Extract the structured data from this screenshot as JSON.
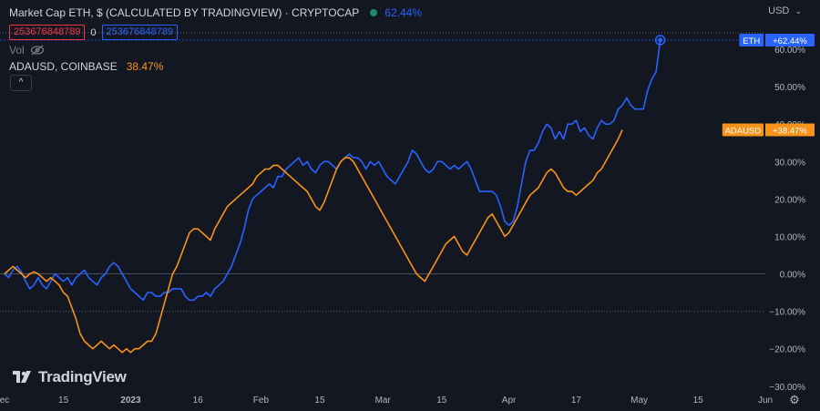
{
  "legend": {
    "eth_title": "Market Cap ETH, $ (CALCULATED BY TRADINGVIEW) · CRYPTOCAP",
    "eth_change": "62.44%",
    "value_red": "253676848789",
    "value_sep": "0",
    "value_blue": "253676848789",
    "vol_label": "Vol",
    "ada_title": "ADAUSD, COINBASE",
    "ada_change": "38.47%",
    "collapse": "^"
  },
  "currency": "USD",
  "logo_text": "TradingView",
  "colors": {
    "eth": "#2962ff",
    "ada": "#f7931a",
    "background": "#131722",
    "grid": "#2a2e39"
  },
  "badges": [
    {
      "symbol": "ETH",
      "value": "+62.44%",
      "color": "#2962ff"
    },
    {
      "symbol": "ADAUSD",
      "value": "+38.47%",
      "color": "#f7931a"
    }
  ],
  "chart_data": {
    "type": "line",
    "ylim": [
      -30,
      65
    ],
    "y_ticks": [
      60,
      50,
      40,
      30,
      20,
      10,
      0,
      -10,
      -20,
      -30
    ],
    "y_tick_labels": [
      "60.00%",
      "50.00%",
      "40.00%",
      "30.00%",
      "20.00%",
      "10.00%",
      "0.00%",
      "−10.00%",
      "−20.00%",
      "−30.00%"
    ],
    "x_ticks": [
      "ec",
      "15",
      "2023",
      "16",
      "Feb",
      "15",
      "Mar",
      "15",
      "Apr",
      "17",
      "May",
      "15",
      "Jun"
    ],
    "x_tick_index": [
      0,
      14,
      30,
      46,
      61,
      75,
      90,
      104,
      120,
      136,
      151,
      165,
      181
    ],
    "series": [
      {
        "name": "ETH",
        "color": "#2962ff",
        "values": [
          0,
          -1,
          1,
          2,
          0.5,
          -2,
          -4,
          -3,
          -1,
          -3,
          -4,
          -2,
          0,
          -1,
          -2,
          -1,
          -3,
          -1,
          0,
          1,
          -1,
          -2,
          -3,
          -1,
          0,
          2,
          3,
          2,
          0,
          -2,
          -4,
          -5,
          -6,
          -7,
          -5,
          -5,
          -6,
          -6,
          -5,
          -5,
          -4,
          -4,
          -4,
          -6,
          -7,
          -7,
          -6,
          -6,
          -5,
          -6,
          -4,
          -3,
          -2,
          0,
          2,
          5,
          8,
          12,
          17,
          20,
          21,
          22,
          23,
          24,
          23,
          26,
          26,
          28,
          29,
          30,
          31,
          29,
          30,
          28,
          27,
          29,
          30,
          30,
          29,
          28,
          30,
          31,
          32,
          31,
          31,
          30,
          28,
          30,
          29,
          30,
          28,
          26,
          25,
          24,
          26,
          28,
          30,
          33,
          32,
          30,
          28,
          27,
          28,
          30,
          30,
          29,
          28,
          29,
          28,
          29,
          30,
          28,
          25,
          22,
          22,
          22,
          22,
          21,
          18,
          14,
          13,
          14,
          18,
          24,
          30,
          33,
          33,
          35,
          38,
          40,
          39,
          36,
          38,
          36,
          40,
          40,
          41,
          38,
          39,
          37,
          36,
          39,
          41,
          40,
          40,
          41,
          44,
          45,
          47,
          45,
          44,
          44,
          44,
          49,
          52,
          54,
          62.44
        ]
      },
      {
        "name": "ADAUSD",
        "color": "#f7931a",
        "values": [
          0,
          1,
          2,
          1,
          0,
          -1,
          0,
          0.5,
          0,
          -1,
          -2,
          -1,
          -2,
          -3,
          -5,
          -6,
          -9,
          -12,
          -16,
          -18,
          -19,
          -20,
          -19,
          -18,
          -19,
          -20,
          -19,
          -20,
          -21,
          -20,
          -21,
          -20,
          -20,
          -19,
          -18,
          -18,
          -16,
          -12,
          -8,
          -4,
          0,
          2,
          5,
          8,
          11,
          12,
          12,
          11,
          10,
          9,
          12,
          14,
          16,
          18,
          19,
          20,
          21,
          22,
          23,
          24,
          26,
          27,
          28,
          28,
          29,
          29,
          28,
          27,
          26,
          25,
          24,
          23,
          22,
          20,
          18,
          17,
          19,
          22,
          25,
          28,
          30,
          31,
          31,
          30,
          28,
          26,
          24,
          22,
          20,
          18,
          16,
          14,
          12,
          10,
          8,
          6,
          4,
          2,
          0,
          -1,
          -2,
          0,
          2,
          4,
          6,
          8,
          9,
          10,
          8,
          6,
          5,
          7,
          9,
          11,
          13,
          15,
          16,
          14,
          12,
          10,
          11,
          13,
          15,
          17,
          19,
          21,
          22,
          23,
          25,
          27,
          28,
          27,
          25,
          23,
          22,
          22,
          21,
          22,
          23,
          24,
          25,
          27,
          28,
          30,
          32,
          34,
          36,
          38.47
        ]
      }
    ]
  }
}
